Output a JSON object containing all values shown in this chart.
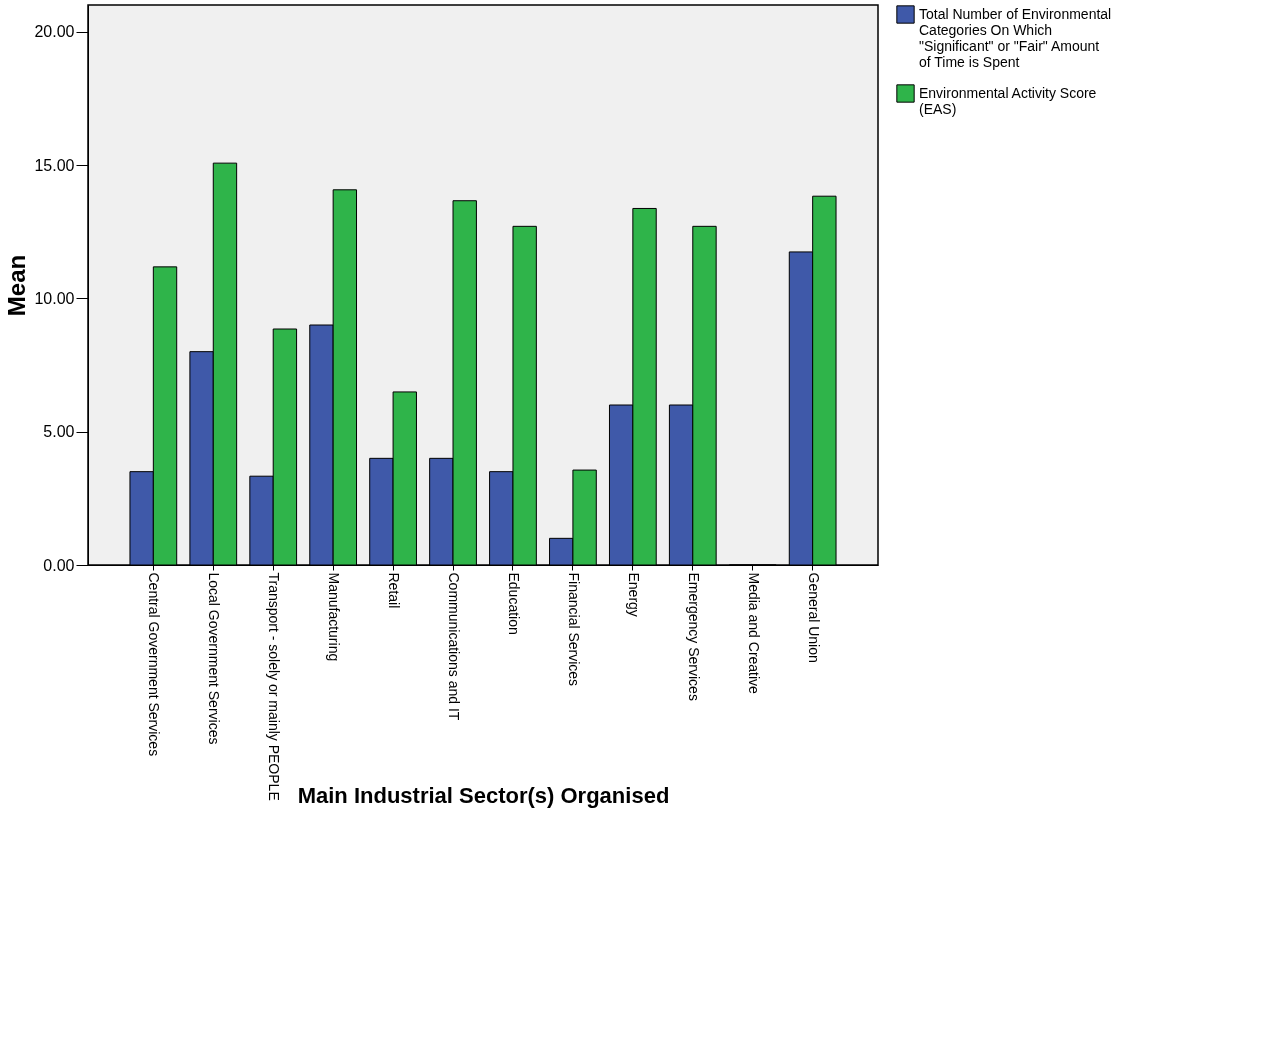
{
  "chart_data": {
    "type": "bar",
    "xlabel": "Main Industrial Sector(s) Organised",
    "ylabel": "Mean",
    "categories": [
      "Central Government Services",
      "Local Government Services",
      "Transport - solely or mainly PEOPLE",
      "Manufacturing",
      "Retail",
      "Communications and IT",
      "Education",
      "Financial Services",
      "Energy",
      "Emergency Services",
      "Media and Creative",
      "General Union"
    ],
    "series": [
      {
        "name": "Total Number of Environmental Categories On Which \"Significant\" or \"Fair\" Amount of Time is Spent",
        "color": "#3f59a9",
        "values": [
          3.5,
          8.0,
          3.33,
          9.0,
          4.0,
          4.0,
          3.5,
          1.0,
          6.0,
          6.0,
          0,
          11.74
        ]
      },
      {
        "name": "Environmental Activity Score (EAS)",
        "color": "#2fb44a",
        "values": [
          11.18,
          15.07,
          8.85,
          14.07,
          6.49,
          13.66,
          12.7,
          3.56,
          13.37,
          12.7,
          0,
          13.83
        ]
      }
    ],
    "ylim": [
      0,
      21
    ],
    "yticks": [
      {
        "value": 0,
        "label": "0.00"
      },
      {
        "value": 5,
        "label": "5.00"
      },
      {
        "value": 10,
        "label": "10.00"
      },
      {
        "value": 15,
        "label": "15.00"
      },
      {
        "value": 20,
        "label": "20.00"
      }
    ],
    "grid": false,
    "legend": "right"
  }
}
